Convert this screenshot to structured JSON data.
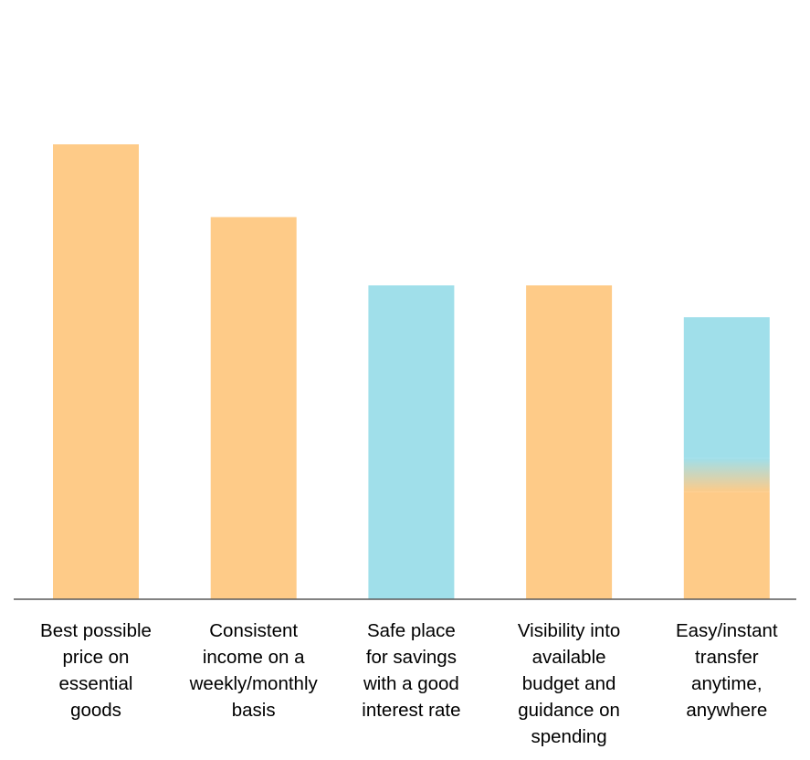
{
  "chart_data": {
    "type": "bar",
    "title": "",
    "xlabel": "",
    "ylabel": "",
    "ylim": [
      0,
      100
    ],
    "grid": false,
    "legend": "none",
    "categories": [
      "Best possible price on essential goods",
      "Consistent income on a weekly/monthly basis",
      "Safe place for savings with a good interest rate",
      "Visibility into available budget and guidance on spending",
      "Easy/instant transfer anytime, anywhere"
    ],
    "label_lines": [
      [
        "Best possible",
        "price on",
        "essential",
        "goods"
      ],
      [
        "Consistent",
        "income on a",
        "weekly/monthly",
        "basis"
      ],
      [
        "Safe place",
        "for savings",
        "with a good",
        "interest rate"
      ],
      [
        "Visibility into",
        "available",
        "budget and",
        "guidance on",
        "spending"
      ],
      [
        "Easy/instant",
        "transfer",
        "anytime,",
        "anywhere"
      ]
    ],
    "values": [
      100,
      84,
      69,
      69,
      62
    ],
    "bar_styles": [
      "orange",
      "orange",
      "blue",
      "orange",
      "blue-orange"
    ]
  },
  "colors": {
    "orange": "#FECB88",
    "blue": "#A0DFEA",
    "axis": "#595959",
    "text": "#000000"
  }
}
